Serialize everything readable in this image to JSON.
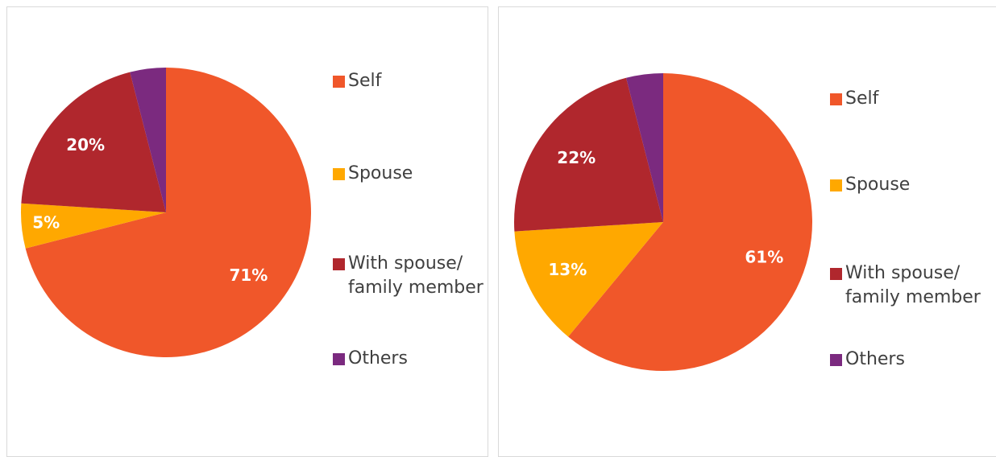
{
  "chart_data": [
    {
      "type": "pie",
      "categories": [
        "Self",
        "Spouse",
        "With spouse/ family member",
        "Others"
      ],
      "values": [
        71,
        5,
        20,
        4
      ],
      "value_labels": [
        "71%",
        "5%",
        "20%",
        null
      ],
      "colors": [
        "#f0572a",
        "#ffa800",
        "#b0272d",
        "#7b2a7f"
      ]
    },
    {
      "type": "pie",
      "categories": [
        "Self",
        "Spouse",
        "With spouse/ family member",
        "Others"
      ],
      "values": [
        61,
        13,
        22,
        4
      ],
      "value_labels": [
        "61%",
        "13%",
        "22%",
        null
      ],
      "colors": [
        "#f0572a",
        "#ffa800",
        "#b0272d",
        "#7b2a7f"
      ]
    }
  ]
}
